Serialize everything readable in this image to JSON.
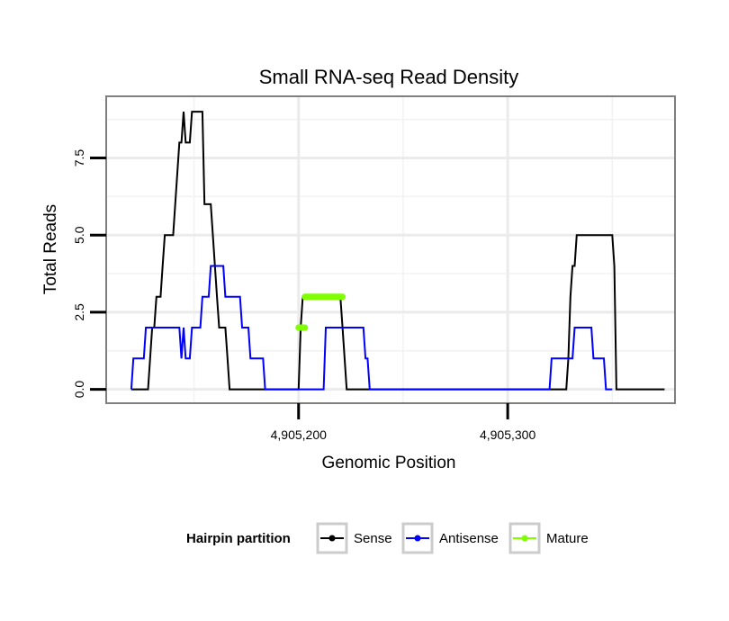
{
  "chart_data": {
    "type": "line",
    "title": "Small RNA-seq Read Density",
    "xlabel": "Genomic Position",
    "ylabel": "Total Reads",
    "xlim": [
      4905108,
      4905380
    ],
    "ylim": [
      -0.45,
      9.5
    ],
    "xticks": [
      {
        "value": 4905200,
        "label": "4,905,200"
      },
      {
        "value": 4905300,
        "label": "4,905,300"
      }
    ],
    "xminor": [
      4905150,
      4905250,
      4905350
    ],
    "yticks": [
      {
        "value": 0,
        "label": "0.0"
      },
      {
        "value": 2.5,
        "label": "2.5"
      },
      {
        "value": 5,
        "label": "5.0"
      },
      {
        "value": 7.5,
        "label": "7.5"
      }
    ],
    "yminor": [
      1.25,
      3.75,
      6.25,
      8.75
    ],
    "legend": {
      "title": "Hairpin partition",
      "position": "bottom",
      "entries": [
        {
          "name": "Sense",
          "color": "#000000"
        },
        {
          "name": "Antisense",
          "color": "#0000ff"
        },
        {
          "name": "Mature",
          "color": "#7fff00"
        }
      ]
    },
    "series": [
      {
        "name": "Sense",
        "color": "#000000",
        "points": [
          [
            4905120,
            0
          ],
          [
            4905128,
            0
          ],
          [
            4905129,
            1
          ],
          [
            4905130,
            2
          ],
          [
            4905131,
            2
          ],
          [
            4905132,
            3
          ],
          [
            4905134,
            3
          ],
          [
            4905135,
            4
          ],
          [
            4905136,
            5
          ],
          [
            4905140,
            5
          ],
          [
            4905141,
            6
          ],
          [
            4905142,
            7
          ],
          [
            4905143,
            8
          ],
          [
            4905144,
            8
          ],
          [
            4905145,
            9
          ],
          [
            4905146,
            8
          ],
          [
            4905148,
            8
          ],
          [
            4905149,
            9
          ],
          [
            4905154,
            9
          ],
          [
            4905155,
            6
          ],
          [
            4905158,
            6
          ],
          [
            4905159,
            5
          ],
          [
            4905160,
            4
          ],
          [
            4905161,
            3
          ],
          [
            4905162,
            2
          ],
          [
            4905165,
            2
          ],
          [
            4905166,
            1
          ],
          [
            4905167,
            0
          ],
          [
            4905200,
            0
          ],
          [
            4905201,
            2
          ],
          [
            4905202,
            3
          ],
          [
            4905220,
            3
          ],
          [
            4905221,
            2
          ],
          [
            4905222,
            1
          ],
          [
            4905223,
            0
          ],
          [
            4905328,
            0
          ],
          [
            4905329,
            1
          ],
          [
            4905330,
            3
          ],
          [
            4905331,
            4
          ],
          [
            4905332,
            4
          ],
          [
            4905333,
            5
          ],
          [
            4905350,
            5
          ],
          [
            4905351,
            4
          ],
          [
            4905352,
            0
          ],
          [
            4905375,
            0
          ]
        ]
      },
      {
        "name": "Antisense",
        "color": "#0000ff",
        "points": [
          [
            4905120,
            0
          ],
          [
            4905121,
            1
          ],
          [
            4905126,
            1
          ],
          [
            4905127,
            2
          ],
          [
            4905143,
            2
          ],
          [
            4905144,
            1
          ],
          [
            4905145,
            2
          ],
          [
            4905146,
            1
          ],
          [
            4905148,
            1
          ],
          [
            4905149,
            2
          ],
          [
            4905153,
            2
          ],
          [
            4905154,
            3
          ],
          [
            4905157,
            3
          ],
          [
            4905158,
            4
          ],
          [
            4905164,
            4
          ],
          [
            4905165,
            3
          ],
          [
            4905172,
            3
          ],
          [
            4905173,
            2
          ],
          [
            4905176,
            2
          ],
          [
            4905177,
            1
          ],
          [
            4905183,
            1
          ],
          [
            4905184,
            0
          ],
          [
            4905212,
            0
          ],
          [
            4905213,
            2
          ],
          [
            4905231,
            2
          ],
          [
            4905232,
            1
          ],
          [
            4905233,
            1
          ],
          [
            4905234,
            0
          ],
          [
            4905320,
            0
          ],
          [
            4905321,
            1
          ],
          [
            4905331,
            1
          ],
          [
            4905332,
            2
          ],
          [
            4905340,
            2
          ],
          [
            4905341,
            1
          ],
          [
            4905346,
            1
          ],
          [
            4905347,
            0
          ],
          [
            4905350,
            0
          ]
        ]
      },
      {
        "name": "Mature",
        "color": "#7fff00",
        "segments": [
          [
            [
              4905200,
              2
            ],
            [
              4905203,
              2
            ]
          ],
          [
            [
              4905203,
              3
            ],
            [
              4905221,
              3
            ]
          ]
        ]
      }
    ]
  }
}
